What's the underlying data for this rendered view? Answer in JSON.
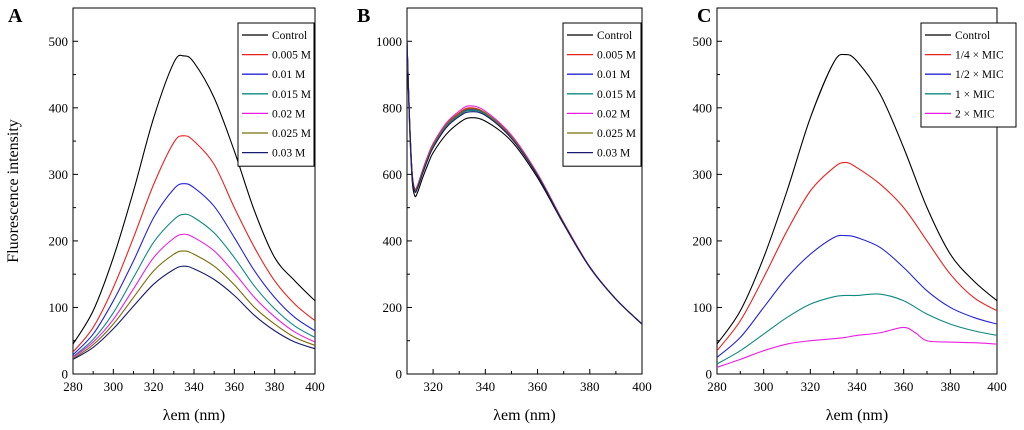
{
  "chart_data": [
    {
      "panel": "A",
      "type": "line",
      "title": "A",
      "xlabel": "λem (nm)",
      "ylabel": "Fluorescence intensity",
      "xlim": [
        280,
        400
      ],
      "ylim": [
        0,
        550
      ],
      "xticks": [
        280,
        300,
        320,
        340,
        360,
        380,
        400
      ],
      "yticks": [
        0,
        100,
        200,
        300,
        400,
        500
      ],
      "grid": false,
      "legend_position": "top-right",
      "series": [
        {
          "name": "Control",
          "color": "#000000",
          "x": [
            280,
            290,
            300,
            310,
            320,
            330,
            335,
            340,
            350,
            360,
            370,
            380,
            390,
            400
          ],
          "values": [
            45,
            95,
            175,
            275,
            385,
            468,
            478,
            468,
            415,
            335,
            245,
            175,
            140,
            110
          ]
        },
        {
          "name": "0.005 M",
          "color": "#e8221f",
          "x": [
            280,
            290,
            300,
            310,
            320,
            330,
            335,
            340,
            350,
            360,
            370,
            380,
            390,
            400
          ],
          "values": [
            33,
            70,
            130,
            205,
            285,
            348,
            358,
            350,
            315,
            250,
            190,
            140,
            105,
            80
          ]
        },
        {
          "name": "0.01 M",
          "color": "#2424d8",
          "x": [
            280,
            290,
            300,
            310,
            320,
            330,
            335,
            340,
            350,
            360,
            370,
            380,
            390,
            400
          ],
          "values": [
            29,
            60,
            110,
            170,
            235,
            278,
            286,
            280,
            252,
            205,
            155,
            115,
            85,
            65
          ]
        },
        {
          "name": "0.015 M",
          "color": "#0e8a80",
          "x": [
            280,
            290,
            300,
            310,
            320,
            330,
            335,
            340,
            350,
            360,
            370,
            380,
            390,
            400
          ],
          "values": [
            26,
            52,
            92,
            145,
            198,
            232,
            240,
            235,
            212,
            175,
            132,
            98,
            72,
            55
          ]
        },
        {
          "name": "0.02 M",
          "color": "#e81fe0",
          "x": [
            280,
            290,
            300,
            310,
            320,
            330,
            335,
            340,
            350,
            360,
            370,
            380,
            390,
            400
          ],
          "values": [
            25,
            48,
            82,
            128,
            175,
            204,
            210,
            205,
            185,
            152,
            115,
            86,
            63,
            48
          ]
        },
        {
          "name": "0.025 M",
          "color": "#7a6d08",
          "x": [
            280,
            290,
            300,
            310,
            320,
            330,
            335,
            340,
            350,
            360,
            370,
            380,
            390,
            400
          ],
          "values": [
            23,
            44,
            75,
            115,
            155,
            180,
            185,
            180,
            162,
            134,
            100,
            75,
            55,
            43
          ]
        },
        {
          "name": "0.03 M",
          "color": "#1a1a70",
          "x": [
            280,
            290,
            300,
            310,
            320,
            330,
            335,
            340,
            350,
            360,
            370,
            380,
            390,
            400
          ],
          "values": [
            22,
            40,
            68,
            102,
            135,
            157,
            162,
            158,
            142,
            118,
            88,
            65,
            48,
            38
          ]
        }
      ]
    },
    {
      "panel": "B",
      "type": "line",
      "title": "B",
      "xlabel": "λem (nm)",
      "ylabel": "",
      "xlim": [
        310,
        400
      ],
      "ylim": [
        0,
        1100
      ],
      "xticks": [
        320,
        340,
        360,
        380,
        400
      ],
      "yticks": [
        0,
        200,
        400,
        600,
        800,
        1000
      ],
      "grid": false,
      "legend_position": "top-right",
      "series": [
        {
          "name": "Control",
          "color": "#000000",
          "x": [
            310,
            311,
            312,
            313,
            314,
            316,
            318,
            320,
            325,
            330,
            334,
            340,
            350,
            360,
            370,
            380,
            390,
            400
          ],
          "values": [
            990,
            740,
            580,
            535,
            545,
            590,
            630,
            665,
            720,
            755,
            770,
            760,
            700,
            590,
            450,
            320,
            225,
            150
          ]
        },
        {
          "name": "0.005 M",
          "color": "#e8221f",
          "x": [
            310,
            311,
            312,
            313,
            314,
            316,
            318,
            320,
            325,
            330,
            334,
            340,
            350,
            360,
            370,
            380,
            390,
            400
          ],
          "values": [
            1000,
            760,
            600,
            555,
            565,
            612,
            655,
            690,
            750,
            785,
            800,
            785,
            715,
            600,
            455,
            322,
            225,
            150
          ]
        },
        {
          "name": "0.01 M",
          "color": "#2424d8",
          "x": [
            310,
            311,
            312,
            313,
            314,
            316,
            318,
            320,
            325,
            330,
            334,
            340,
            350,
            360,
            370,
            380,
            390,
            400
          ],
          "values": [
            1000,
            760,
            598,
            552,
            562,
            608,
            650,
            686,
            746,
            780,
            795,
            782,
            712,
            598,
            454,
            322,
            225,
            150
          ]
        },
        {
          "name": "0.015 M",
          "color": "#0e8a80",
          "x": [
            310,
            311,
            312,
            313,
            314,
            316,
            318,
            320,
            325,
            330,
            334,
            340,
            350,
            360,
            370,
            380,
            390,
            400
          ],
          "values": [
            1000,
            758,
            596,
            550,
            560,
            606,
            648,
            684,
            744,
            778,
            792,
            780,
            710,
            597,
            453,
            321,
            225,
            150
          ]
        },
        {
          "name": "0.02 M",
          "color": "#e81fe0",
          "x": [
            310,
            311,
            312,
            313,
            314,
            316,
            318,
            320,
            325,
            330,
            334,
            340,
            350,
            360,
            370,
            380,
            390,
            400
          ],
          "values": [
            1000,
            762,
            602,
            557,
            567,
            614,
            657,
            693,
            754,
            790,
            806,
            790,
            718,
            602,
            456,
            322,
            225,
            150
          ]
        },
        {
          "name": "0.025 M",
          "color": "#7a6d08",
          "x": [
            310,
            311,
            312,
            313,
            314,
            316,
            318,
            320,
            325,
            330,
            334,
            340,
            350,
            360,
            370,
            380,
            390,
            400
          ],
          "values": [
            1000,
            760,
            600,
            554,
            564,
            610,
            652,
            688,
            748,
            782,
            797,
            784,
            713,
            599,
            454,
            321,
            225,
            150
          ]
        },
        {
          "name": "0.03 M",
          "color": "#1a1a70",
          "x": [
            310,
            311,
            312,
            313,
            314,
            316,
            318,
            320,
            325,
            330,
            334,
            340,
            350,
            360,
            370,
            380,
            390,
            400
          ],
          "values": [
            1000,
            757,
            594,
            548,
            558,
            603,
            645,
            680,
            740,
            774,
            788,
            777,
            708,
            596,
            452,
            321,
            225,
            150
          ]
        }
      ]
    },
    {
      "panel": "C",
      "type": "line",
      "title": "C",
      "xlabel": "λem (nm)",
      "ylabel": "",
      "xlim": [
        280,
        400
      ],
      "ylim": [
        0,
        550
      ],
      "xticks": [
        280,
        300,
        320,
        340,
        360,
        380,
        400
      ],
      "yticks": [
        0,
        100,
        200,
        300,
        400,
        500
      ],
      "grid": false,
      "legend_position": "top-right",
      "series": [
        {
          "name": "Control",
          "color": "#000000",
          "x": [
            280,
            290,
            300,
            310,
            320,
            330,
            335,
            340,
            350,
            360,
            370,
            380,
            390,
            400
          ],
          "values": [
            45,
            95,
            175,
            275,
            385,
            468,
            480,
            470,
            420,
            340,
            250,
            180,
            140,
            110
          ]
        },
        {
          "name": "1/4  × MIC",
          "color": "#e8221f",
          "x": [
            280,
            290,
            300,
            310,
            320,
            330,
            335,
            340,
            350,
            360,
            370,
            380,
            390,
            400
          ],
          "values": [
            35,
            80,
            145,
            215,
            275,
            310,
            318,
            310,
            285,
            250,
            200,
            150,
            115,
            95
          ]
        },
        {
          "name": "1/2  × MIC",
          "color": "#2424d8",
          "x": [
            280,
            290,
            300,
            310,
            320,
            330,
            335,
            340,
            350,
            360,
            370,
            380,
            390,
            400
          ],
          "values": [
            25,
            55,
            100,
            145,
            180,
            205,
            208,
            205,
            190,
            160,
            125,
            100,
            85,
            75
          ]
        },
        {
          "name": "1  × MIC",
          "color": "#0e8a80",
          "x": [
            280,
            290,
            300,
            310,
            320,
            330,
            335,
            340,
            350,
            360,
            370,
            380,
            390,
            400
          ],
          "values": [
            15,
            35,
            60,
            85,
            105,
            116,
            118,
            118,
            120,
            110,
            90,
            75,
            65,
            58
          ]
        },
        {
          "name": "2  × MIC",
          "color": "#e81fe0",
          "x": [
            280,
            290,
            300,
            310,
            320,
            330,
            335,
            340,
            350,
            360,
            365,
            370,
            380,
            390,
            400
          ],
          "values": [
            10,
            22,
            35,
            45,
            50,
            53,
            55,
            58,
            62,
            70,
            62,
            50,
            48,
            47,
            45
          ]
        }
      ]
    }
  ]
}
